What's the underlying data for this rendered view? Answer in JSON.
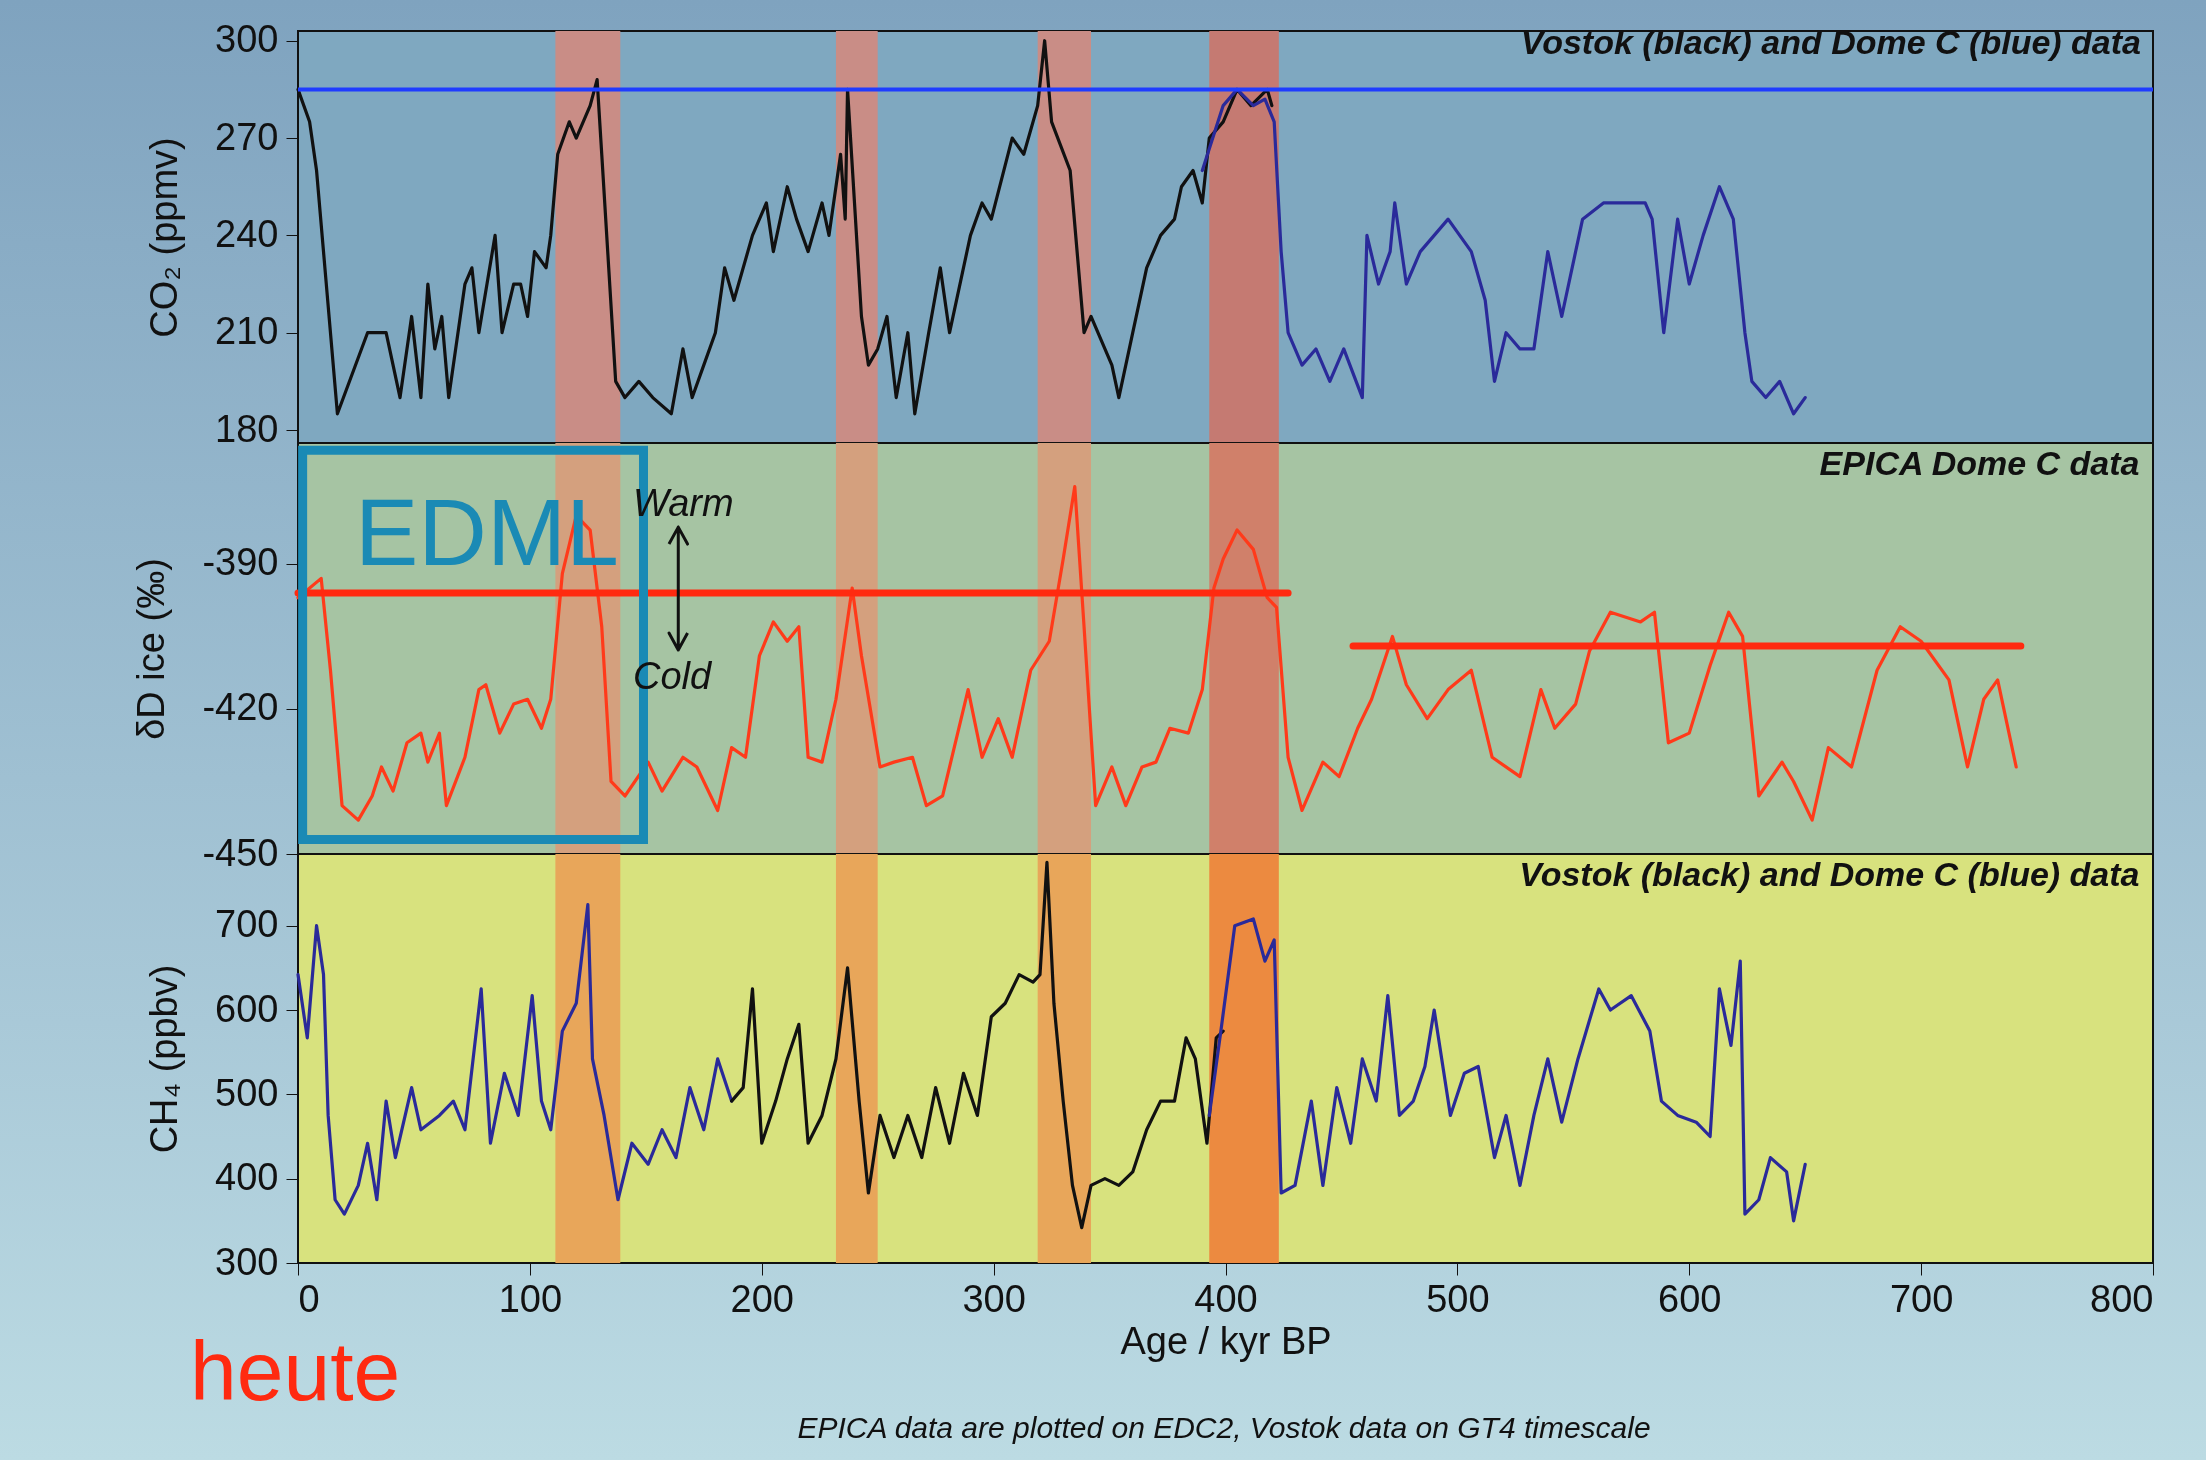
{
  "chart_data": [
    {
      "type": "line",
      "title": "Vostok (black) and Dome C (blue) data",
      "ylabel": "CO₂ (ppmv)",
      "xlim": [
        0,
        800
      ],
      "xticks": [
        0,
        100,
        200,
        300,
        400,
        500,
        600,
        700,
        800
      ],
      "ylim": [
        176,
        303
      ],
      "yticks": [
        180,
        210,
        240,
        270,
        300
      ],
      "tick_labels": "y",
      "bands": [
        {
          "axis": "x",
          "from": 111,
          "to": 139,
          "color": "#c98d86"
        },
        {
          "axis": "x",
          "from": 232,
          "to": 250,
          "color": "#c98d86"
        },
        {
          "axis": "x",
          "from": 319,
          "to": 342,
          "color": "#c98d86"
        },
        {
          "axis": "x",
          "from": 393,
          "to": 423,
          "color": "#c57a72"
        }
      ],
      "ref_lines": [
        {
          "axis": "y",
          "value": 285,
          "color": "#1f3cff"
        }
      ],
      "series": [
        {
          "color": "#111111",
          "x": [
            0,
            5,
            8,
            17,
            30,
            38,
            44,
            49,
            53,
            56,
            59,
            62,
            65,
            72,
            75,
            78,
            85,
            88,
            93,
            96,
            99,
            102,
            107,
            109,
            112,
            117,
            120,
            126,
            129,
            131,
            134,
            137,
            141,
            147,
            153,
            161,
            166,
            170,
            175,
            180,
            184,
            188,
            196,
            202,
            205,
            211,
            215,
            220,
            226,
            229,
            234,
            236,
            237,
            240,
            243,
            246,
            250,
            254,
            258,
            263,
            266,
            272,
            277,
            281,
            290,
            295,
            299,
            308,
            313,
            319,
            322,
            325,
            333,
            339,
            342,
            351,
            354,
            360,
            366,
            372,
            378,
            381,
            386,
            390,
            393,
            399,
            405,
            411,
            418,
            420
          ],
          "values": [
            285,
            275,
            260,
            185,
            210,
            210,
            190,
            215,
            190,
            225,
            205,
            215,
            190,
            225,
            230,
            210,
            240,
            210,
            225,
            225,
            215,
            235,
            230,
            240,
            265,
            275,
            270,
            280,
            288,
            265,
            230,
            195,
            190,
            195,
            190,
            185,
            205,
            190,
            200,
            210,
            230,
            220,
            240,
            250,
            235,
            255,
            245,
            235,
            250,
            240,
            265,
            245,
            285,
            250,
            215,
            200,
            205,
            215,
            190,
            210,
            185,
            210,
            230,
            210,
            240,
            250,
            245,
            270,
            265,
            280,
            300,
            275,
            260,
            210,
            215,
            200,
            190,
            210,
            230,
            240,
            245,
            255,
            260,
            250,
            270,
            275,
            285,
            280,
            285,
            280
          ]
        },
        {
          "color": "#2a2a9a",
          "x": [
            390,
            399,
            405,
            412,
            417,
            421,
            424,
            427,
            433,
            439,
            445,
            451,
            459,
            461,
            466,
            471,
            473,
            478,
            484,
            490,
            496,
            506,
            512,
            516,
            521,
            527,
            533,
            539,
            545,
            554,
            563,
            572,
            581,
            584,
            589,
            595,
            600,
            606,
            613,
            619,
            624,
            627,
            633,
            639,
            645,
            650
          ],
          "values": [
            260,
            280,
            285,
            280,
            282,
            275,
            235,
            210,
            200,
            205,
            195,
            205,
            190,
            240,
            225,
            235,
            250,
            225,
            235,
            240,
            245,
            235,
            220,
            195,
            210,
            205,
            205,
            235,
            215,
            245,
            250,
            250,
            250,
            245,
            210,
            245,
            225,
            240,
            255,
            245,
            210,
            195,
            190,
            195,
            185,
            190
          ]
        }
      ]
    },
    {
      "type": "line",
      "title": "EPICA Dome C data",
      "ylabel": "δD ice (‰)",
      "xlim": [
        0,
        800
      ],
      "xticks": [
        0,
        100,
        200,
        300,
        400,
        500,
        600,
        700,
        800
      ],
      "ylim": [
        -450,
        -365
      ],
      "yticks": [
        -450,
        -420,
        -390
      ],
      "tick_labels": "y",
      "bands": [
        {
          "axis": "x",
          "from": 111,
          "to": 139,
          "color": "#d4a07e"
        },
        {
          "axis": "x",
          "from": 232,
          "to": 250,
          "color": "#d4a07e"
        },
        {
          "axis": "x",
          "from": 319,
          "to": 342,
          "color": "#d4a07e"
        },
        {
          "axis": "x",
          "from": 393,
          "to": 423,
          "color": "#d0806a"
        }
      ],
      "annotations": [
        "EDML",
        "Warm",
        "Cold"
      ],
      "series": [
        {
          "color": "#ff3a1a",
          "x": [
            0,
            10,
            14,
            19,
            26,
            32,
            36,
            41,
            47,
            53,
            56,
            61,
            64,
            72,
            78,
            81,
            87,
            93,
            99,
            105,
            109,
            114,
            120,
            126,
            131,
            135,
            141,
            151,
            157,
            166,
            172,
            181,
            187,
            193,
            199,
            205,
            211,
            216,
            220,
            226,
            232,
            239,
            243,
            251,
            257,
            265,
            271,
            278,
            289,
            295,
            302,
            308,
            316,
            324,
            330,
            335,
            339,
            344,
            351,
            357,
            364,
            370,
            376,
            384,
            390,
            395,
            399,
            405,
            412,
            418,
            422,
            427,
            433,
            442,
            449,
            457,
            463,
            472,
            478,
            487,
            496,
            506,
            515,
            527,
            536,
            542,
            551,
            557,
            566,
            579,
            585,
            591,
            600,
            609,
            617,
            623,
            630,
            640,
            645,
            653,
            660,
            670,
            681,
            691,
            700,
            712,
            720,
            727,
            733,
            741
          ],
          "values": [
            -397,
            -393,
            -412,
            -440,
            -443,
            -438,
            -432,
            -437,
            -427,
            -425,
            -431,
            -425,
            -440,
            -430,
            -416,
            -415,
            -425,
            -419,
            -418,
            -424,
            -418,
            -392,
            -380,
            -383,
            -403,
            -435,
            -438,
            -431,
            -437,
            -430,
            -432,
            -441,
            -428,
            -430,
            -409,
            -402,
            -406,
            -403,
            -430,
            -431,
            -418,
            -395,
            -409,
            -432,
            -431,
            -430,
            -440,
            -438,
            -416,
            -430,
            -422,
            -430,
            -412,
            -406,
            -389,
            -374,
            -403,
            -440,
            -432,
            -440,
            -432,
            -431,
            -424,
            -425,
            -416,
            -395,
            -389,
            -383,
            -387,
            -397,
            -399,
            -430,
            -441,
            -431,
            -434,
            -424,
            -418,
            -405,
            -415,
            -422,
            -416,
            -412,
            -430,
            -434,
            -416,
            -424,
            -419,
            -408,
            -400,
            -402,
            -400,
            -427,
            -425,
            -411,
            -400,
            -405,
            -438,
            -431,
            -435,
            -443,
            -428,
            -432,
            -412,
            -403,
            -406,
            -414,
            -432,
            -418,
            -414,
            -432
          ]
        },
        {
          "color": "#ff2a10",
          "x": [
            0,
            427
          ],
          "values": [
            -396,
            -396
          ]
        },
        {
          "color": "#ff2a10",
          "x": [
            455,
            743
          ],
          "values": [
            -407,
            -407
          ]
        }
      ]
    },
    {
      "type": "line",
      "title": "Vostok (black) and Dome C (blue) data",
      "xlabel": "Age / kyr BP",
      "ylabel": "CH₄ (ppbv)",
      "xlim": [
        0,
        800
      ],
      "xticks": [
        0,
        100,
        200,
        300,
        400,
        500,
        600,
        700,
        800
      ],
      "ylim": [
        300,
        785
      ],
      "yticks": [
        300,
        400,
        500,
        600,
        700
      ],
      "bands": [
        {
          "axis": "x",
          "from": 111,
          "to": 139,
          "color": "#e8a65a"
        },
        {
          "axis": "x",
          "from": 232,
          "to": 250,
          "color": "#e8a65a"
        },
        {
          "axis": "x",
          "from": 319,
          "to": 342,
          "color": "#e8a65a"
        },
        {
          "axis": "x",
          "from": 393,
          "to": 423,
          "color": "#ec8a40"
        }
      ],
      "annotations": [
        "heute",
        "EPICA data are plotted on EDC2, Vostok data on GT4 timescale"
      ],
      "series": [
        {
          "color": "#2a2a9a",
          "x": [
            0,
            4,
            8,
            11,
            13,
            16,
            20,
            26,
            30,
            34,
            38,
            42,
            49,
            53,
            61,
            67,
            72,
            79,
            83,
            89,
            95,
            101,
            105,
            109,
            114,
            120,
            125,
            127,
            132,
            138,
            144,
            151,
            157,
            163,
            169,
            175,
            181,
            187
          ],
          "values": [
            642,
            567,
            700,
            642,
            475,
            375,
            358,
            392,
            442,
            375,
            492,
            425,
            508,
            458,
            475,
            492,
            458,
            625,
            442,
            525,
            475,
            617,
            492,
            458,
            575,
            608,
            725,
            542,
            475,
            375,
            442,
            417,
            458,
            425,
            508,
            458,
            542,
            492
          ]
        },
        {
          "color": "#111111",
          "x": [
            187,
            192,
            196,
            200,
            206,
            211,
            216,
            220,
            226,
            232,
            237,
            242,
            246,
            251,
            257,
            263,
            269,
            275,
            281,
            287,
            293,
            299,
            305,
            311,
            317,
            320,
            323,
            326,
            330,
            334,
            338,
            342,
            348,
            354,
            360,
            366,
            372,
            378,
            383,
            387,
            392,
            396,
            399
          ],
          "values": [
            492,
            508,
            625,
            442,
            492,
            542,
            583,
            442,
            475,
            542,
            650,
            492,
            383,
            475,
            425,
            475,
            425,
            508,
            442,
            525,
            475,
            592,
            608,
            642,
            633,
            642,
            775,
            608,
            492,
            392,
            342,
            392,
            400,
            392,
            408,
            458,
            492,
            492,
            567,
            542,
            442,
            567,
            575
          ]
        },
        {
          "color": "#2a2a9a",
          "x": [
            393,
            398,
            404,
            412,
            417,
            421,
            424,
            430,
            437,
            442,
            448,
            454,
            459,
            465,
            470,
            475,
            481,
            486,
            490,
            497,
            503,
            509,
            516,
            521,
            527,
            533,
            539,
            545,
            552,
            561,
            566,
            575,
            583,
            588,
            595,
            603,
            609,
            613,
            618,
            622,
            624,
            630,
            635,
            642,
            645,
            650
          ],
          "values": [
            475,
            575,
            700,
            708,
            658,
            683,
            383,
            392,
            492,
            392,
            508,
            442,
            542,
            492,
            617,
            475,
            492,
            533,
            600,
            475,
            525,
            533,
            425,
            475,
            392,
            475,
            542,
            467,
            542,
            625,
            600,
            617,
            575,
            492,
            475,
            467,
            450,
            625,
            558,
            658,
            358,
            375,
            425,
            408,
            350,
            417
          ]
        }
      ]
    }
  ]
}
